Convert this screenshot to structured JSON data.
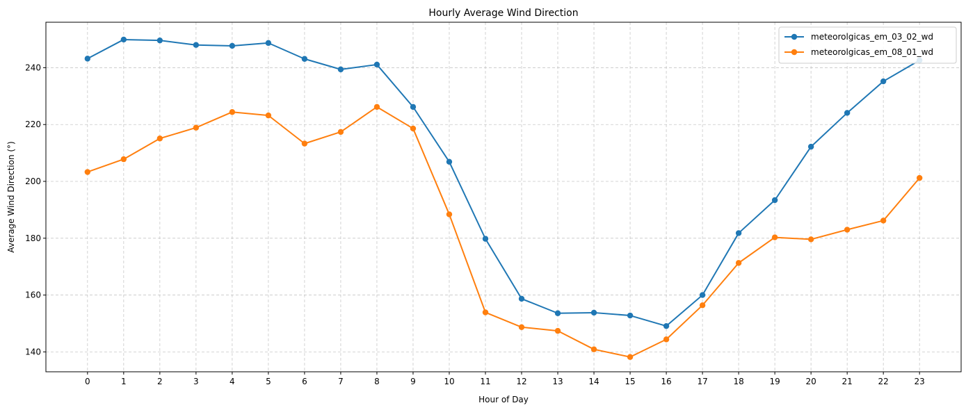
{
  "chart_data": {
    "type": "line",
    "title": "Hourly Average Wind Direction",
    "xlabel": "Hour of Day",
    "ylabel": "Average Wind Direction (°)",
    "x": [
      0,
      1,
      2,
      3,
      4,
      5,
      6,
      7,
      8,
      9,
      10,
      11,
      12,
      13,
      14,
      15,
      16,
      17,
      18,
      19,
      20,
      21,
      22,
      23
    ],
    "xlim": [
      -1.15,
      24.15
    ],
    "ylim": [
      133,
      256
    ],
    "yticks": [
      140,
      160,
      180,
      200,
      220,
      240
    ],
    "grid": true,
    "legend_position": "top-right",
    "series": [
      {
        "name": "meteorolgicas_em_03_02_wd",
        "color": "#1f77b4",
        "values": [
          243.2,
          249.9,
          249.6,
          248.0,
          247.7,
          248.7,
          243.1,
          239.4,
          241.1,
          226.2,
          206.9,
          179.8,
          158.7,
          153.6,
          153.8,
          152.8,
          149.1,
          160.0,
          181.8,
          193.4,
          212.2,
          224.1,
          235.2,
          242.6
        ]
      },
      {
        "name": "meteorolgicas_em_08_01_wd",
        "color": "#ff7f0e",
        "values": [
          203.3,
          207.8,
          215.1,
          218.9,
          224.4,
          223.2,
          213.3,
          217.4,
          226.2,
          218.6,
          188.4,
          153.9,
          148.7,
          147.4,
          140.9,
          138.2,
          144.4,
          156.4,
          171.3,
          180.3,
          179.6,
          183.0,
          186.2,
          201.2
        ]
      }
    ]
  }
}
